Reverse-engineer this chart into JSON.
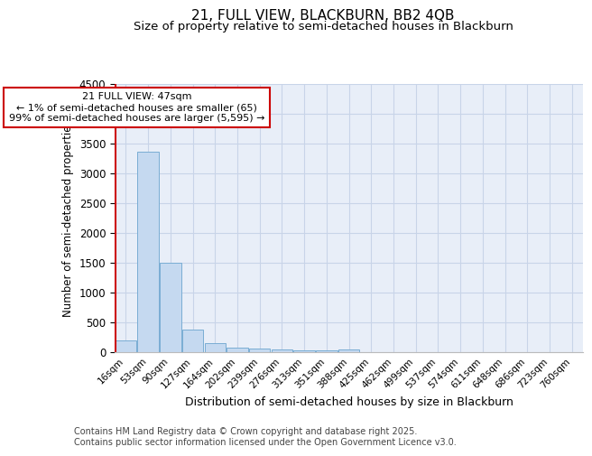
{
  "title": "21, FULL VIEW, BLACKBURN, BB2 4QB",
  "subtitle": "Size of property relative to semi-detached houses in Blackburn",
  "xlabel": "Distribution of semi-detached houses by size in Blackburn",
  "ylabel": "Number of semi-detached properties",
  "categories": [
    "16sqm",
    "53sqm",
    "90sqm",
    "127sqm",
    "164sqm",
    "202sqm",
    "239sqm",
    "276sqm",
    "313sqm",
    "351sqm",
    "388sqm",
    "425sqm",
    "462sqm",
    "499sqm",
    "537sqm",
    "574sqm",
    "611sqm",
    "648sqm",
    "686sqm",
    "723sqm",
    "760sqm"
  ],
  "values": [
    190,
    3360,
    1500,
    375,
    145,
    75,
    55,
    40,
    35,
    30,
    45,
    0,
    0,
    0,
    0,
    0,
    0,
    0,
    0,
    0,
    0
  ],
  "bar_color": "#c5d9f0",
  "bar_edge_color": "#7aadd4",
  "bar_edge_width": 0.7,
  "vline_x_index": 0,
  "vline_color": "#cc0000",
  "vline_linewidth": 1.5,
  "annotation_text": "21 FULL VIEW: 47sqm\n← 1% of semi-detached houses are smaller (65)\n99% of semi-detached houses are larger (5,595) →",
  "annotation_box_color": "#ffffff",
  "annotation_box_edge": "#cc0000",
  "annotation_fontsize": 8,
  "ylim": [
    0,
    4500
  ],
  "yticks": [
    0,
    500,
    1000,
    1500,
    2000,
    2500,
    3000,
    3500,
    4000,
    4500
  ],
  "grid_color": "#c8d4e8",
  "bg_color": "#e8eef8",
  "footer": "Contains HM Land Registry data © Crown copyright and database right 2025.\nContains public sector information licensed under the Open Government Licence v3.0.",
  "title_fontsize": 11,
  "subtitle_fontsize": 9.5,
  "ylabel_fontsize": 8.5,
  "xlabel_fontsize": 9,
  "footer_fontsize": 7,
  "ytick_fontsize": 8.5,
  "xtick_fontsize": 7.5
}
